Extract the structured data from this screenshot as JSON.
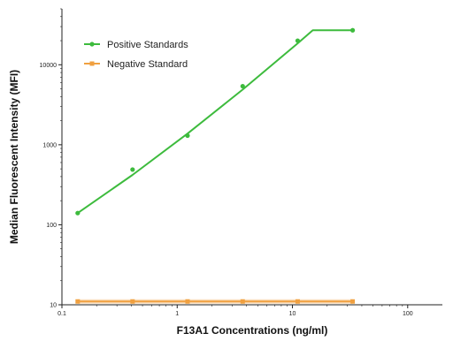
{
  "chart_data": {
    "type": "scatter",
    "xlabel": "F13A1 Concentrations (ng/ml)",
    "ylabel": "Median Fluorescent Intensity (MFI)",
    "x_scale": "log",
    "y_scale": "log",
    "xlim": [
      0.1,
      200
    ],
    "ylim": [
      10,
      50000
    ],
    "x_ticks": [
      0.1,
      1,
      10,
      100
    ],
    "x_tick_labels": [
      "0.1",
      "1",
      "10",
      "100"
    ],
    "y_ticks": [
      10,
      100,
      1000,
      10000
    ],
    "y_tick_labels": [
      "10",
      "100",
      "1000",
      "10000"
    ],
    "grid": false,
    "legend": "top-left",
    "series": [
      {
        "name": "Positive Standards",
        "color": "#3dbb3d",
        "x": [
          0.137,
          0.41,
          1.23,
          3.7,
          11.1,
          33.3
        ],
        "y": [
          140,
          490,
          1300,
          5400,
          20000,
          27000
        ],
        "fit_x": [
          0.137,
          0.41,
          1.23,
          3.7,
          11.1,
          15,
          33.3
        ],
        "fit_y": [
          140,
          420,
          1380,
          4900,
          18500,
          27000,
          27000
        ]
      },
      {
        "name": "Negative Standard",
        "color": "#f0a040",
        "x": [
          0.137,
          0.41,
          1.23,
          3.7,
          11.1,
          33.3
        ],
        "y": [
          11,
          11,
          11,
          11,
          11,
          11
        ]
      }
    ]
  }
}
